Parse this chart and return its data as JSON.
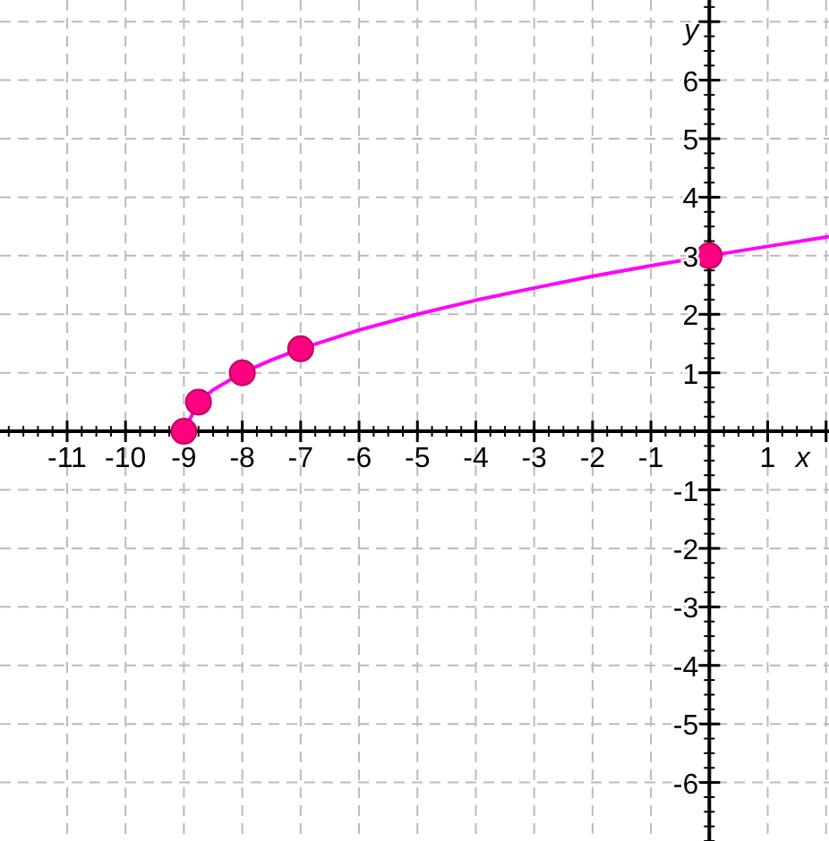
{
  "chart_data": {
    "type": "line",
    "xlabel": "x",
    "ylabel": "y",
    "xlim": [
      -12.15,
      2.05
    ],
    "ylim": [
      -7.0,
      7.37
    ],
    "xticks": [
      -11,
      -10,
      -9,
      -8,
      -7,
      -6,
      -5,
      -4,
      -3,
      -2,
      -1,
      {
        "value": 0,
        "label": null
      },
      1,
      {
        "value": 2,
        "label": null
      }
    ],
    "yticks": [
      -6,
      -5,
      -4,
      -3,
      -2,
      -1,
      {
        "value": 0,
        "label": null
      },
      1,
      2,
      3,
      4,
      5,
      6,
      {
        "value": 7,
        "label": null
      }
    ],
    "grid": true,
    "series": [
      {
        "color": "#ff00ff",
        "marker": "none",
        "x": [
          -9,
          -8.75,
          -8.5,
          -8,
          -7.5,
          -7,
          -6,
          -5,
          -4,
          -3,
          -2,
          -1,
          0,
          1,
          2,
          2.05
        ],
        "values": [
          0,
          0.5,
          0.71,
          1,
          1.22,
          1.41,
          1.73,
          2,
          2.24,
          2.45,
          2.65,
          2.83,
          3,
          3.16,
          3.32,
          3.33
        ]
      },
      {
        "type": "scatter",
        "color": "#ff0080",
        "marker": "circle",
        "x": [
          -9,
          -8.75,
          -8,
          -7,
          0
        ],
        "values": [
          0,
          0.5,
          1,
          1.41,
          3
        ]
      }
    ]
  }
}
